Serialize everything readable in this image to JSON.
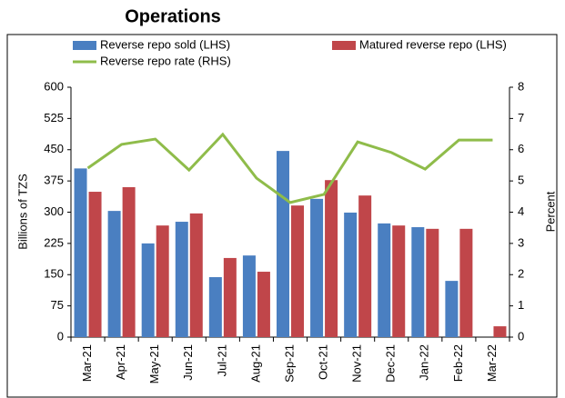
{
  "chart_data": {
    "type": "bar_line",
    "title": "Operations",
    "categories": [
      "Mar-21",
      "Apr-21",
      "May-21",
      "Jun-21",
      "Jul-21",
      "Aug-21",
      "Sep-21",
      "Oct-21",
      "Nov-21",
      "Dec-21",
      "Jan-22",
      "Feb-22",
      "Mar-22"
    ],
    "series": [
      {
        "name": "Reverse repo sold (LHS)",
        "color": "#4a7fc1",
        "kind": "bar",
        "values": [
          405,
          303,
          225,
          277,
          144,
          196,
          447,
          332,
          299,
          273,
          264,
          135,
          null
        ]
      },
      {
        "name": "Matured reverse repo  (LHS)",
        "color": "#c0464a",
        "kind": "bar",
        "values": [
          349,
          360,
          268,
          297,
          190,
          157,
          316,
          377,
          340,
          268,
          260,
          260,
          26
        ]
      },
      {
        "name": "Reverse repo rate (RHS)",
        "color": "#8fbc4a",
        "kind": "line",
        "axis": "y2",
        "values": [
          5.41,
          6.17,
          6.34,
          5.35,
          6.49,
          5.09,
          4.31,
          4.57,
          6.25,
          5.91,
          5.38,
          6.31,
          6.31
        ]
      }
    ],
    "ylabel": "Billions of TZS",
    "y2label": "Percent",
    "ylim": [
      0,
      600
    ],
    "yticks": [
      0,
      75,
      150,
      225,
      300,
      375,
      450,
      525,
      600
    ],
    "y2lim": [
      0,
      8
    ],
    "y2ticks": [
      0,
      1,
      2,
      3,
      4,
      5,
      6,
      7,
      8
    ]
  }
}
